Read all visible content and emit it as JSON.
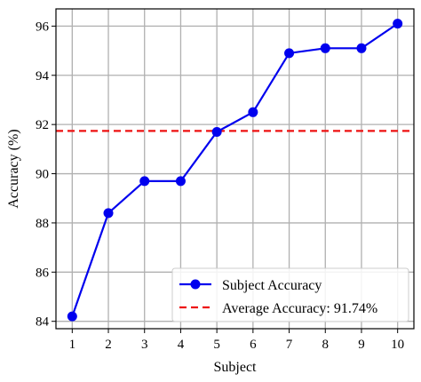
{
  "chart_data": {
    "type": "line",
    "title": "",
    "xlabel": "Subject",
    "ylabel": "Accuracy (%)",
    "x": [
      1,
      2,
      3,
      4,
      5,
      6,
      7,
      8,
      9,
      10
    ],
    "xticks": [
      "1",
      "2",
      "3",
      "4",
      "5",
      "6",
      "7",
      "8",
      "9",
      "10"
    ],
    "yticks": [
      "84",
      "86",
      "88",
      "90",
      "92",
      "94",
      "96"
    ],
    "xlim": [
      0.55,
      10.45
    ],
    "ylim": [
      83.7,
      96.7
    ],
    "grid": true,
    "series": [
      {
        "name": "Subject Accuracy",
        "values": [
          84.2,
          88.4,
          89.7,
          89.7,
          91.7,
          92.5,
          94.9,
          95.1,
          95.1,
          96.1
        ],
        "color": "#0000ee",
        "marker": "circle"
      }
    ],
    "reference_line": {
      "name": "Average Accuracy: 91.74%",
      "value": 91.74,
      "color": "#ee1111",
      "style": "dashed"
    },
    "legend": {
      "position": "bottom-right",
      "entries": [
        "Subject Accuracy",
        "Average Accuracy: 91.74%"
      ]
    }
  }
}
